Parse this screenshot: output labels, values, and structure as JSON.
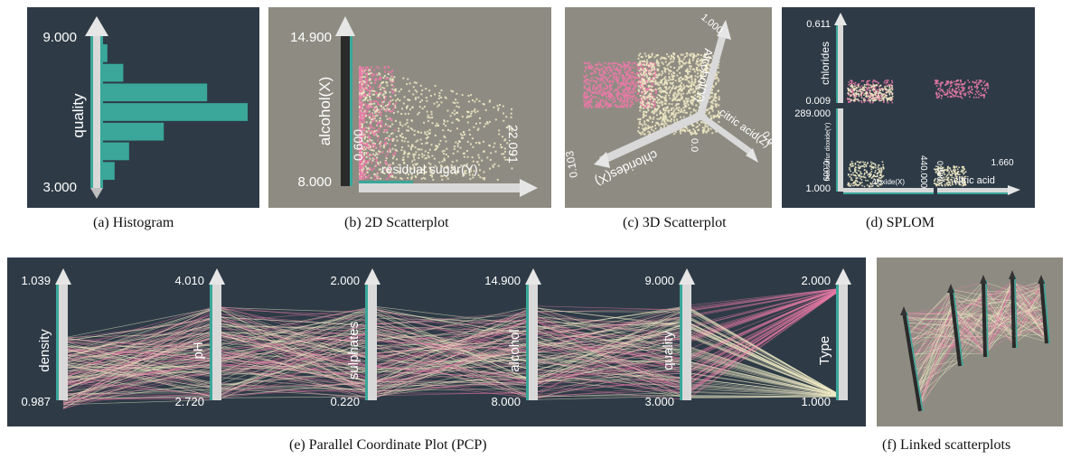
{
  "panels": {
    "histogram": {
      "caption": "(a) Histogram",
      "max_label": "9.000",
      "min_label": "3.000",
      "axis_title": "quality",
      "bar_counts": [
        0.08,
        0.18,
        0.42,
        1.0,
        0.72,
        0.14,
        0.03
      ]
    },
    "scatter2d": {
      "caption": "(b) 2D Scatterplot",
      "y_max": "14.900",
      "y_min": "8.000",
      "y_title": "alcohol(X)",
      "x_min": "0.600",
      "x_max": "22.091",
      "x_title": "residual sugar(Y)"
    },
    "scatter3d": {
      "caption": "(c) 3D Scatterplot",
      "axis_x": "chlorides(X)",
      "axis_y": "Alcohol(Y)",
      "axis_z": "citric acid(Z)",
      "tick_x": "0.103",
      "tick_y": "1.000",
      "tick_z": "0.9",
      "tick_origin": "0.0"
    },
    "splom": {
      "caption": "(d) SPLOM",
      "top_max": "0.611",
      "top_min": "0.009",
      "top_title": "chlorides",
      "bottom_max": "289.000",
      "bottom_min": "1.000",
      "bottom_title": "free sulfur dioxide(Y)",
      "x_left_min": "0.009",
      "x_left_max": "440.000",
      "x_left_title": "dioxide(X)",
      "x_right_min": "0.000",
      "x_right_max": "1.660",
      "x_right_title": "citric acid"
    },
    "pcp": {
      "caption": "(e) Parallel Coordinate Plot (PCP)",
      "axes": [
        {
          "title": "density",
          "max": "1.039",
          "min": "0.987"
        },
        {
          "title": "pH",
          "max": "4.010",
          "min": "2.720"
        },
        {
          "title": "sulphates",
          "max": "2.000",
          "min": "0.220"
        },
        {
          "title": "alcohol",
          "max": "14.900",
          "min": "8.000"
        },
        {
          "title": "quality",
          "max": "9.000",
          "min": "3.000"
        },
        {
          "title": "Type",
          "max": "2.000",
          "min": "1.000"
        }
      ]
    },
    "linked": {
      "caption": "(f) Linked scatterplots"
    }
  },
  "colors": {
    "dark_bg": "#2e3b47",
    "gray_bg": "#8e8c82",
    "teal": "#3aa79a",
    "pink": "#e77aa6",
    "cream": "#efe9c4",
    "axis_white": "#e6e6e6"
  }
}
